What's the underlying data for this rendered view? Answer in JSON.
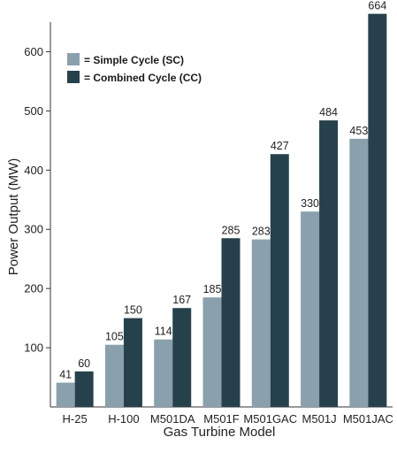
{
  "chart_data": {
    "type": "bar",
    "xlabel": "Gas Turbine Model",
    "ylabel": "Power Output (MW)",
    "ylim": [
      0,
      650
    ],
    "yticks": [
      100,
      200,
      300,
      400,
      500,
      600
    ],
    "grid": false,
    "legend_position": "top-left",
    "categories": [
      "H-25",
      "H-100",
      "M501DA",
      "M501F",
      "M501GAC",
      "M501J",
      "M501JAC"
    ],
    "series": [
      {
        "name": "= Simple Cycle (SC)",
        "color": "#8aa1ad",
        "values": [
          41,
          105,
          114,
          185,
          283,
          330,
          453
        ]
      },
      {
        "name": "= Combined Cycle (CC)",
        "color": "#26414c",
        "values": [
          60,
          150,
          167,
          285,
          427,
          484,
          664
        ]
      }
    ]
  }
}
